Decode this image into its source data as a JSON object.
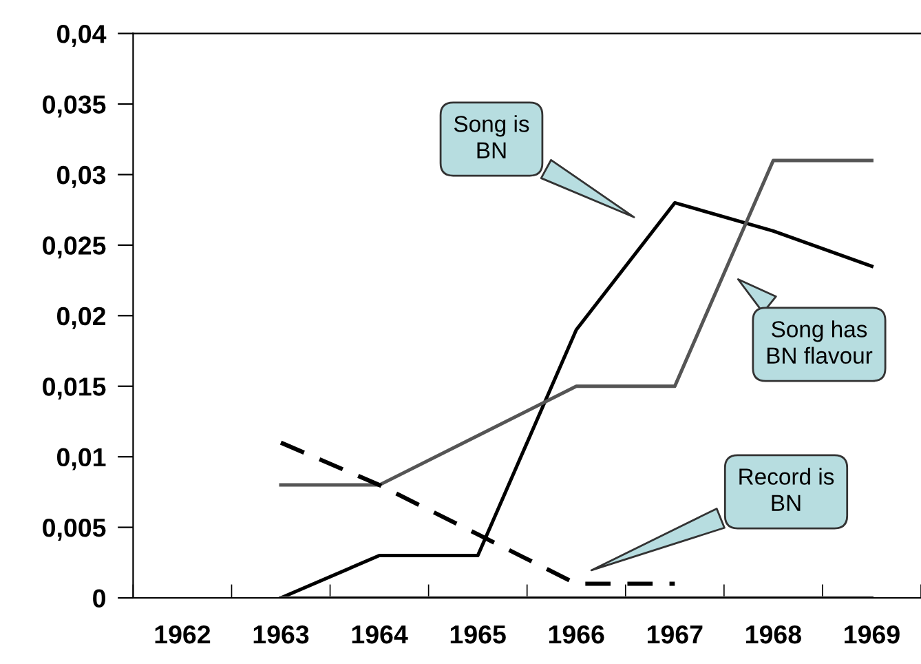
{
  "chart_data": {
    "type": "line",
    "categories": [
      "1962",
      "1963",
      "1964",
      "1965",
      "1966",
      "1967",
      "1968",
      "1969"
    ],
    "series": [
      {
        "color": "#000000",
        "values": [
          null,
          0,
          0.003,
          0.003,
          0.019,
          0.028,
          0.026,
          0.0235
        ]
      },
      {
        "color": "#555555",
        "values": [
          null,
          0.008,
          0.008,
          0.0115,
          0.015,
          0.015,
          0.031,
          0.031
        ]
      },
      {
        "color": "#000000",
        "line_style": "dashed",
        "values": [
          null,
          0.011,
          0.008,
          0.0045,
          0.001,
          0.001,
          null,
          null
        ]
      },
      {
        "color": "#555555",
        "values": [
          null,
          0,
          0,
          0,
          0,
          0,
          0,
          0
        ]
      }
    ],
    "ylim": [
      0,
      0.04
    ],
    "yticks": [
      {
        "value": 0,
        "label": "0"
      },
      {
        "value": 0.005,
        "label": "0,005"
      },
      {
        "value": 0.01,
        "label": "0,01"
      },
      {
        "value": 0.015,
        "label": "0,015"
      },
      {
        "value": 0.02,
        "label": "0,02"
      },
      {
        "value": 0.025,
        "label": "0,025"
      },
      {
        "value": 0.03,
        "label": "0,03"
      },
      {
        "value": 0.035,
        "label": "0,035"
      },
      {
        "value": 0.04,
        "label": "0,04"
      }
    ],
    "annotations": [
      "Song is\nBN",
      "Song has\nBN flavour",
      "Record is\nBN"
    ],
    "grid": false,
    "legend": false,
    "marker": "none",
    "line_style": "solid"
  }
}
